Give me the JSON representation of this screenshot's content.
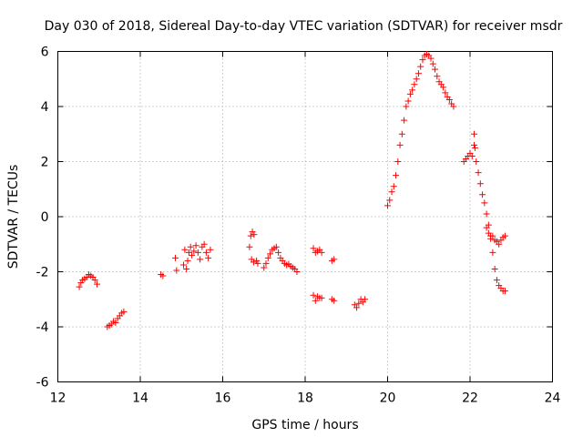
{
  "chart_data": {
    "type": "scatter",
    "title": "Day 030 of 2018, Sidereal Day-to-day VTEC variation (SDTVAR) for receiver msdr",
    "xlabel": "GPS time / hours",
    "ylabel": "SDTVAR / TECUs",
    "xlim": [
      12,
      24
    ],
    "ylim": [
      -6,
      6
    ],
    "xticks": [
      "12",
      "14",
      "16",
      "18",
      "20",
      "22",
      "24"
    ],
    "yticks": [
      "-6",
      "-4",
      "-2",
      "0",
      "2",
      "4",
      "6"
    ],
    "grid": true,
    "marker": "+",
    "color": "#ff0000",
    "series": [
      {
        "name": "SDTVAR",
        "points": [
          [
            12.52,
            -2.55
          ],
          [
            12.56,
            -2.4
          ],
          [
            12.6,
            -2.3
          ],
          [
            12.65,
            -2.25
          ],
          [
            12.7,
            -2.2
          ],
          [
            12.75,
            -2.1
          ],
          [
            12.8,
            -2.15
          ],
          [
            12.85,
            -2.2
          ],
          [
            12.9,
            -2.3
          ],
          [
            12.95,
            -2.45
          ],
          [
            13.2,
            -4.0
          ],
          [
            13.25,
            -3.95
          ],
          [
            13.3,
            -3.9
          ],
          [
            13.35,
            -3.8
          ],
          [
            13.4,
            -3.85
          ],
          [
            13.45,
            -3.7
          ],
          [
            13.5,
            -3.6
          ],
          [
            13.55,
            -3.5
          ],
          [
            13.6,
            -3.45
          ],
          [
            14.5,
            -2.1
          ],
          [
            14.55,
            -2.15
          ],
          [
            14.85,
            -1.5
          ],
          [
            14.88,
            -1.95
          ],
          [
            15.05,
            -1.75
          ],
          [
            15.08,
            -1.2
          ],
          [
            15.12,
            -1.9
          ],
          [
            15.15,
            -1.6
          ],
          [
            15.18,
            -1.3
          ],
          [
            15.22,
            -1.1
          ],
          [
            15.25,
            -1.4
          ],
          [
            15.3,
            -1.25
          ],
          [
            15.35,
            -1.05
          ],
          [
            15.4,
            -1.3
          ],
          [
            15.45,
            -1.55
          ],
          [
            15.5,
            -1.1
          ],
          [
            15.55,
            -1.0
          ],
          [
            15.6,
            -1.3
          ],
          [
            15.65,
            -1.5
          ],
          [
            15.7,
            -1.2
          ],
          [
            16.65,
            -1.1
          ],
          [
            16.68,
            -0.7
          ],
          [
            16.72,
            -0.55
          ],
          [
            16.76,
            -0.65
          ],
          [
            16.7,
            -1.55
          ],
          [
            16.75,
            -1.65
          ],
          [
            16.82,
            -1.6
          ],
          [
            16.85,
            -1.7
          ],
          [
            17.0,
            -1.85
          ],
          [
            17.05,
            -1.7
          ],
          [
            17.1,
            -1.5
          ],
          [
            17.15,
            -1.35
          ],
          [
            17.2,
            -1.2
          ],
          [
            17.25,
            -1.15
          ],
          [
            17.3,
            -1.1
          ],
          [
            17.35,
            -1.3
          ],
          [
            17.4,
            -1.5
          ],
          [
            17.45,
            -1.6
          ],
          [
            17.5,
            -1.7
          ],
          [
            17.55,
            -1.75
          ],
          [
            17.6,
            -1.72
          ],
          [
            17.65,
            -1.8
          ],
          [
            17.7,
            -1.85
          ],
          [
            17.75,
            -1.9
          ],
          [
            17.8,
            -2.0
          ],
          [
            18.2,
            -1.15
          ],
          [
            18.25,
            -1.3
          ],
          [
            18.3,
            -1.25
          ],
          [
            18.35,
            -1.2
          ],
          [
            18.4,
            -1.3
          ],
          [
            18.2,
            -2.85
          ],
          [
            18.25,
            -3.05
          ],
          [
            18.3,
            -2.9
          ],
          [
            18.35,
            -2.95
          ],
          [
            18.4,
            -2.95
          ],
          [
            18.65,
            -1.6
          ],
          [
            18.7,
            -1.55
          ],
          [
            18.65,
            -3.0
          ],
          [
            18.7,
            -3.05
          ],
          [
            19.2,
            -3.2
          ],
          [
            19.25,
            -3.3
          ],
          [
            19.3,
            -3.15
          ],
          [
            19.35,
            -3.0
          ],
          [
            19.4,
            -3.1
          ],
          [
            19.45,
            -3.0
          ],
          [
            20.0,
            0.4
          ],
          [
            20.05,
            0.6
          ],
          [
            20.1,
            0.9
          ],
          [
            20.15,
            1.1
          ],
          [
            20.2,
            1.5
          ],
          [
            20.25,
            2.0
          ],
          [
            20.3,
            2.6
          ],
          [
            20.35,
            3.0
          ],
          [
            20.4,
            3.5
          ],
          [
            20.45,
            4.0
          ],
          [
            20.5,
            4.2
          ],
          [
            20.55,
            4.45
          ],
          [
            20.6,
            4.6
          ],
          [
            20.65,
            4.8
          ],
          [
            20.7,
            5.0
          ],
          [
            20.75,
            5.2
          ],
          [
            20.8,
            5.45
          ],
          [
            20.85,
            5.7
          ],
          [
            20.9,
            5.85
          ],
          [
            20.95,
            5.9
          ],
          [
            21.0,
            5.85
          ],
          [
            21.05,
            5.75
          ],
          [
            21.1,
            5.55
          ],
          [
            21.15,
            5.35
          ],
          [
            21.2,
            5.1
          ],
          [
            21.25,
            4.9
          ],
          [
            21.3,
            4.8
          ],
          [
            21.35,
            4.7
          ],
          [
            21.4,
            4.5
          ],
          [
            21.45,
            4.35
          ],
          [
            21.5,
            4.25
          ],
          [
            21.55,
            4.1
          ],
          [
            21.6,
            4.0
          ],
          [
            21.85,
            2.0
          ],
          [
            21.9,
            2.1
          ],
          [
            21.95,
            2.2
          ],
          [
            22.0,
            2.3
          ],
          [
            22.05,
            2.2
          ],
          [
            22.1,
            2.6
          ],
          [
            22.1,
            3.0
          ],
          [
            22.12,
            2.5
          ],
          [
            22.15,
            2.0
          ],
          [
            22.2,
            1.6
          ],
          [
            22.25,
            1.2
          ],
          [
            22.3,
            0.8
          ],
          [
            22.35,
            0.5
          ],
          [
            22.4,
            0.1
          ],
          [
            22.45,
            -0.3
          ],
          [
            22.5,
            -0.7
          ],
          [
            22.55,
            -1.3
          ],
          [
            22.6,
            -1.9
          ],
          [
            22.65,
            -2.3
          ],
          [
            22.7,
            -2.5
          ],
          [
            22.75,
            -2.6
          ],
          [
            22.8,
            -2.7
          ],
          [
            22.85,
            -2.7
          ],
          [
            22.4,
            -0.4
          ],
          [
            22.45,
            -0.6
          ],
          [
            22.5,
            -0.8
          ],
          [
            22.55,
            -0.7
          ],
          [
            22.6,
            -0.85
          ],
          [
            22.65,
            -0.9
          ],
          [
            22.7,
            -1.0
          ],
          [
            22.75,
            -0.85
          ],
          [
            22.8,
            -0.75
          ],
          [
            22.85,
            -0.7
          ]
        ]
      }
    ]
  }
}
